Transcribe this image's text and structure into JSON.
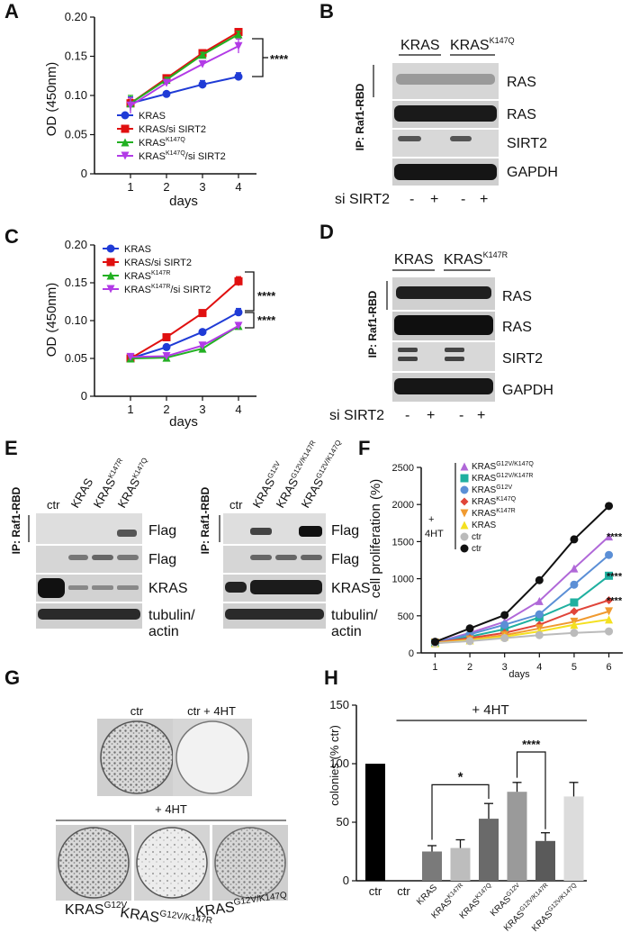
{
  "panels": {
    "A": "A",
    "B": "B",
    "C": "C",
    "D": "D",
    "E": "E",
    "F": "F",
    "G": "G",
    "H": "H"
  },
  "text": {
    "od_axis": "OD (450nm)",
    "days": "days",
    "ip_label": "IP: Raf1-RBD",
    "si_sirt2": "si SIRT2",
    "minus": "-",
    "plus": "+",
    "sig4": "****",
    "sig1": "*",
    "ras": "RAS",
    "sirt2": "SIRT2",
    "gapdh": "GAPDH",
    "kras": "KRAS",
    "flag": "Flag",
    "tubulin": "tubulin/",
    "actin": "actin",
    "ctr": "ctr",
    "ctr_4ht": "ctr + 4HT",
    "plus_4ht": "+ 4HT",
    "plus_sign": "+",
    "fourht": "4HT",
    "cell_prolif": "cell proliferation (%)",
    "colonies": "colonies (% ctr)",
    "kras_sup": "KRAS",
    "sup_k147q": "K147Q",
    "sup_k147r": "K147R",
    "sup_g12v": "G12V",
    "sup_g12v_k147r": "G12V/K147R",
    "sup_g12v_k147q": "G12V/K147Q"
  },
  "lanes_E_left": [
    "ctr",
    "KRAS",
    "KRASK147R",
    "KRASK147Q"
  ],
  "lanes_E_right": [
    "ctr",
    "KRASG12V",
    "KRASG12V/K147R",
    "KRASG12V/K147Q"
  ],
  "colors": {
    "blue": "#1f3bd6",
    "red": "#e01010",
    "green": "#22b022",
    "violet": "#b23be6",
    "black": "#111111",
    "grey": "#aaaaaa"
  },
  "chart_data": [
    {
      "panel": "A",
      "type": "line",
      "x": [
        1,
        2,
        3,
        4
      ],
      "xticks": [
        "1",
        "2",
        "3",
        "4"
      ],
      "xlabel": "days",
      "ylabel": "OD (450nm)",
      "ylim": [
        0,
        0.2
      ],
      "yticks": [
        "0",
        "0.05",
        "0.10",
        "0.15",
        "0.20"
      ],
      "series": [
        {
          "name": "KRAS",
          "values": [
            0.09,
            0.102,
            0.114,
            0.124
          ],
          "err": [
            0.008,
            0.003,
            0.005,
            0.005
          ],
          "color": "#1f3bd6",
          "marker": "circle"
        },
        {
          "name": "KRAS/si SIRT2",
          "values": [
            0.09,
            0.122,
            0.154,
            0.181
          ],
          "err": [
            0.005,
            0.003,
            0.003,
            0.004
          ],
          "color": "#e01010",
          "marker": "square"
        },
        {
          "name": "KRASK147Q",
          "values": [
            0.09,
            0.12,
            0.152,
            0.178
          ],
          "err": [
            0.01,
            0.003,
            0.003,
            0.004
          ],
          "color": "#22b022",
          "marker": "triangle-up"
        },
        {
          "name": "KRASK147Q/si SIRT2",
          "values": [
            0.087,
            0.116,
            0.14,
            0.163
          ],
          "err": [
            0.01,
            0.004,
            0.003,
            0.009
          ],
          "color": "#b23be6",
          "marker": "triangle-down"
        }
      ],
      "legend_labels": [
        "KRAS",
        "KRAS/si SIRT2",
        "KRAS",
        "KRAS"
      ],
      "legend_sup": [
        "",
        "",
        "K147Q",
        "K147Q"
      ],
      "legend_suffix": [
        "",
        "",
        "",
        "/si SIRT2"
      ],
      "annotations": [
        "****"
      ]
    },
    {
      "panel": "C",
      "type": "line",
      "x": [
        1,
        2,
        3,
        4
      ],
      "xticks": [
        "1",
        "2",
        "3",
        "4"
      ],
      "xlabel": "days",
      "ylabel": "OD (450nm)",
      "ylim": [
        0,
        0.2
      ],
      "yticks": [
        "0",
        "0.05",
        "0.10",
        "0.15",
        "0.20"
      ],
      "series": [
        {
          "name": "KRAS",
          "values": [
            0.05,
            0.065,
            0.085,
            0.111
          ],
          "err": [
            0.002,
            0.002,
            0.002,
            0.005
          ],
          "color": "#1f3bd6",
          "marker": "circle"
        },
        {
          "name": "KRAS/si SIRT2",
          "values": [
            0.05,
            0.078,
            0.11,
            0.152
          ],
          "err": [
            0.002,
            0.002,
            0.002,
            0.006
          ],
          "color": "#e01010",
          "marker": "square"
        },
        {
          "name": "KRASK147R",
          "values": [
            0.05,
            0.051,
            0.063,
            0.093
          ],
          "err": [
            0.002,
            0.002,
            0.002,
            0.002
          ],
          "color": "#22b022",
          "marker": "triangle-up"
        },
        {
          "name": "KRASK147R/si SIRT2",
          "values": [
            0.052,
            0.053,
            0.067,
            0.093
          ],
          "err": [
            0.002,
            0.002,
            0.002,
            0.002
          ],
          "color": "#b23be6",
          "marker": "triangle-down"
        }
      ],
      "legend_labels": [
        "KRAS",
        "KRAS/si SIRT2",
        "KRAS",
        "KRAS"
      ],
      "legend_sup": [
        "",
        "",
        "K147R",
        "K147R"
      ],
      "legend_suffix": [
        "",
        "",
        "",
        "/si SIRT2"
      ],
      "annotations": [
        "****",
        "****"
      ]
    },
    {
      "panel": "F",
      "type": "line",
      "x": [
        1,
        2,
        3,
        4,
        5,
        6
      ],
      "xticks": [
        "1",
        "2",
        "3",
        "4",
        "5",
        "6"
      ],
      "xlabel": "days",
      "ylabel": "cell proliferation (%)",
      "ylim": [
        0,
        2500
      ],
      "yticks": [
        "0",
        "500",
        "1000",
        "1500",
        "2000",
        "2500"
      ],
      "series": [
        {
          "name": "KRASG12V/K147Q",
          "values": [
            140,
            270,
            420,
            700,
            1140,
            1570
          ],
          "color": "#b068d8",
          "marker": "triangle-up"
        },
        {
          "name": "KRASG12V/K147R",
          "values": [
            140,
            220,
            320,
            480,
            680,
            1040
          ],
          "color": "#1fb0a0",
          "marker": "square"
        },
        {
          "name": "KRASG12V",
          "values": [
            140,
            250,
            380,
            520,
            920,
            1320
          ],
          "color": "#5b8fd6",
          "marker": "circle"
        },
        {
          "name": "KRASK147Q",
          "values": [
            140,
            200,
            270,
            380,
            560,
            710
          ],
          "color": "#e0453a",
          "marker": "diamond"
        },
        {
          "name": "KRASK147R",
          "values": [
            140,
            180,
            240,
            330,
            420,
            560
          ],
          "color": "#f09a30",
          "marker": "triangle-down"
        },
        {
          "name": "KRAS",
          "values": [
            130,
            170,
            220,
            290,
            380,
            450
          ],
          "color": "#f4e020",
          "marker": "triangle-up"
        },
        {
          "name": "ctr",
          "values": [
            130,
            160,
            200,
            240,
            270,
            290
          ],
          "color": "#bbbbbb",
          "marker": "circle"
        },
        {
          "name": "ctr",
          "values": [
            150,
            330,
            510,
            980,
            1530,
            1980
          ],
          "color": "#111111",
          "marker": "circle"
        }
      ],
      "legend_labels": [
        "KRAS",
        "KRAS",
        "KRAS",
        "KRAS",
        "KRAS",
        "KRAS",
        "ctr",
        "ctr"
      ],
      "legend_sup": [
        "G12V/K147Q",
        "G12V/K147R",
        "G12V",
        "K147Q",
        "K147R",
        "",
        "",
        ""
      ],
      "annotations": [
        "****",
        "****",
        "****"
      ]
    },
    {
      "panel": "H",
      "type": "bar",
      "categories": [
        "ctr",
        "ctr",
        "KRAS",
        "KRASK147R",
        "KRASK147Q",
        "KRASG12V",
        "KRASG12V/K147R",
        "KRASG12V/K147Q"
      ],
      "cat_base": [
        "ctr",
        "ctr",
        "KRAS",
        "KRAS",
        "KRAS",
        "KRAS",
        "KRAS",
        "KRAS"
      ],
      "cat_sup": [
        "",
        "",
        "",
        "K147R",
        "K147Q",
        "G12V",
        "G12V/K147R",
        "G12V/K147Q"
      ],
      "values": [
        100,
        0,
        25,
        28,
        53,
        76,
        34,
        72
      ],
      "err": [
        0,
        0,
        5,
        7,
        13,
        8,
        7,
        12
      ],
      "colors": [
        "#000000",
        "#000000",
        "#7a7a7a",
        "#bdbdbd",
        "#6a6a6a",
        "#9a9a9a",
        "#5a5a5a",
        "#dcdcdc"
      ],
      "ylabel": "colonies (% ctr)",
      "ylim": [
        0,
        150
      ],
      "yticks": [
        "0",
        "50",
        "100",
        "150"
      ],
      "annotations": [
        "+ 4HT",
        "*",
        "****"
      ]
    }
  ]
}
